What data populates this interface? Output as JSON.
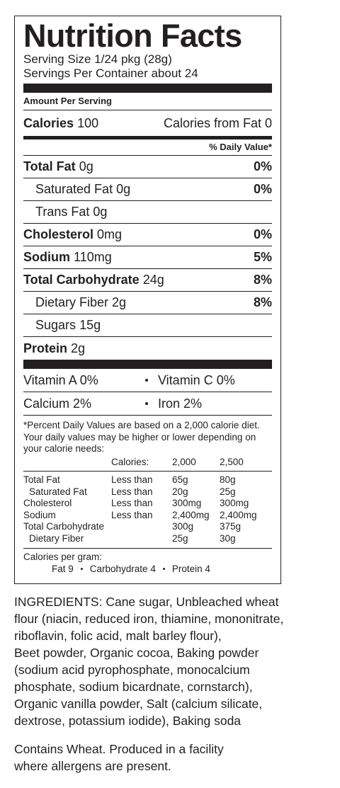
{
  "title": "Nutrition Facts",
  "serving_size": "Serving Size 1/24 pkg (28g)",
  "servings_per_container": "Servings Per Container about 24",
  "amount_per_serving": "Amount Per Serving",
  "calories": {
    "label": "Calories",
    "value": "100",
    "from_fat": "Calories from Fat 0"
  },
  "daily_value_header": "% Daily Value*",
  "nutrients": [
    {
      "name": "Total Fat",
      "amount": "0g",
      "dv": "0%",
      "sub": [
        {
          "name": "Saturated Fat",
          "amount": "0g",
          "dv": "0%"
        },
        {
          "name": "Trans Fat",
          "amount": "0g"
        }
      ]
    },
    {
      "name": "Cholesterol",
      "amount": "0mg",
      "dv": "0%"
    },
    {
      "name": "Sodium",
      "amount": "110mg",
      "dv": "5%"
    },
    {
      "name": "Total Carbohydrate",
      "amount": "24g",
      "dv": "8%",
      "sub": [
        {
          "name": "Dietary Fiber",
          "amount": "2g",
          "dv": "8%"
        },
        {
          "name": "Sugars",
          "amount": "15g"
        }
      ]
    },
    {
      "name": "Protein",
      "amount": "2g"
    }
  ],
  "vitamins": [
    [
      "Vitamin A 0%",
      "Vitamin C 0%"
    ],
    [
      "Calcium 2%",
      "Iron 2%"
    ]
  ],
  "footnote": "*Percent Daily Values are based on a 2,000 calorie diet. Your daily values may be higher or lower depending on your calorie needs:",
  "dv_table": {
    "header": [
      "Calories:",
      "2,000",
      "2,500"
    ],
    "rows": [
      {
        "nutrient": "Total Fat",
        "limit": "Less than",
        "values": [
          "65g",
          "80g"
        ]
      },
      {
        "nutrient": "Saturated Fat",
        "limit": "Less than",
        "values": [
          "20g",
          "25g"
        ],
        "indent": true
      },
      {
        "nutrient": "Cholesterol",
        "limit": "Less than",
        "values": [
          "300mg",
          "300mg"
        ]
      },
      {
        "nutrient": "Sodium",
        "limit": "Less than",
        "values": [
          "2,400mg",
          "2,400mg"
        ]
      },
      {
        "nutrient": "Total Carbohydrate",
        "values": [
          "300g",
          "375g"
        ]
      },
      {
        "nutrient": "Dietary Fiber",
        "values": [
          "25g",
          "30g"
        ],
        "indent": true
      }
    ]
  },
  "calories_per_gram": {
    "label": "Calories per gram:",
    "items": [
      "Fat 9",
      "Carbohydrate 4",
      "Protein 4"
    ]
  },
  "ingredients": [
    "INGREDIENTS: Cane sugar, Unbleached wheat",
    "flour (niacin, reduced iron, thiamine, mononitrate,",
    "riboflavin, folic acid, malt barley flour),",
    "Beet powder, Organic cocoa, Baking powder",
    "(sodium acid pyrophosphate, monocalcium",
    "phosphate, sodium bicardnate, cornstarch),",
    "Organic vanilla powder, Salt (calcium silicate,",
    "dextrose, potassium iodide), Baking soda"
  ],
  "allergens": [
    "Contains Wheat. Produced in a facility",
    "where allergens are present."
  ]
}
